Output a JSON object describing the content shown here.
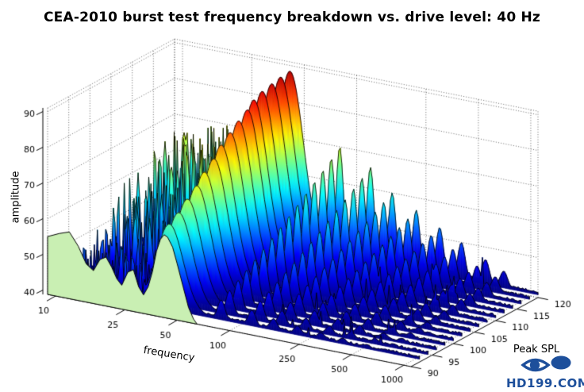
{
  "title": "CEA-2010 burst test frequency breakdown vs. drive level: 40 Hz",
  "watermark": {
    "text": "HD199.COM",
    "color": "#1d4f9b"
  },
  "colors": {
    "background": "#ffffff",
    "front_slice_fill": "#c9efb3",
    "slice_stroke": "#000000",
    "grid": "#555555",
    "axis": "#000000"
  },
  "chart_data": {
    "type": "3d-waterfall",
    "title": "CEA-2010 burst test frequency breakdown vs. drive level: 40 Hz",
    "xlabel": "frequency",
    "x_scale": "log",
    "x_ticks": [
      10,
      25,
      50,
      100,
      250,
      500,
      1000
    ],
    "x_range": [
      9,
      1100
    ],
    "ylabel": "Peak SPL",
    "y_ticks": [
      90,
      95,
      100,
      105,
      110,
      115,
      120
    ],
    "y_range": [
      90,
      120
    ],
    "zlabel": "amplitude",
    "z_ticks": [
      40,
      50,
      60,
      70,
      80,
      90
    ],
    "z_range": [
      38.8,
      91
    ],
    "colormap": "jet",
    "colormap_amp_range": [
      40,
      91
    ],
    "grid": "dotted",
    "drive_hz": 40,
    "fundamental_hz": 40,
    "series": [
      {
        "peak_spl": 90,
        "fundamental_amplitude": 62.0,
        "style": "front-green"
      },
      {
        "peak_spl": 92,
        "fundamental_amplitude": 63.5
      },
      {
        "peak_spl": 94,
        "fundamental_amplitude": 65.5
      },
      {
        "peak_spl": 96,
        "fundamental_amplitude": 68.0
      },
      {
        "peak_spl": 98,
        "fundamental_amplitude": 70.5
      },
      {
        "peak_spl": 100,
        "fundamental_amplitude": 73.0
      },
      {
        "peak_spl": 102,
        "fundamental_amplitude": 75.5
      },
      {
        "peak_spl": 104,
        "fundamental_amplitude": 78.0
      },
      {
        "peak_spl": 106,
        "fundamental_amplitude": 80.2
      },
      {
        "peak_spl": 108,
        "fundamental_amplitude": 82.2
      },
      {
        "peak_spl": 110,
        "fundamental_amplitude": 84.0
      },
      {
        "peak_spl": 112,
        "fundamental_amplitude": 85.4
      },
      {
        "peak_spl": 114,
        "fundamental_amplitude": 86.5
      },
      {
        "peak_spl": 116,
        "fundamental_amplitude": 87.4
      },
      {
        "peak_spl": 118,
        "fundamental_amplitude": 88.0
      },
      {
        "peak_spl": 120,
        "fundamental_amplitude": 88.4
      }
    ],
    "harmonics_hz": [
      80,
      120,
      160,
      220,
      300,
      400,
      550,
      700
    ],
    "harmonics_amplitude_at_max_level": [
      70,
      66,
      60,
      56.5,
      53,
      50,
      46.5,
      44.3
    ],
    "harmonics_amplitude_at_min_level": [
      44,
      43,
      42,
      41.5,
      41,
      40.8,
      40.5,
      40.3
    ],
    "noise": {
      "band_hz": [
        11,
        36
      ],
      "cap_at_min_level": 50,
      "cap_at_max_level": 72
    },
    "floor_amplitude": 40.2,
    "front_slice_profile": [
      [
        9,
        55.0
      ],
      [
        10.5,
        56.5
      ],
      [
        12,
        57.5
      ],
      [
        13.5,
        54.0
      ],
      [
        15,
        49.5
      ],
      [
        16.5,
        48.0
      ],
      [
        18,
        51.5
      ],
      [
        19.5,
        52.5
      ],
      [
        21,
        50.0
      ],
      [
        22.5,
        47.0
      ],
      [
        24,
        45.5
      ],
      [
        26,
        49.5
      ],
      [
        28,
        50.5
      ],
      [
        30,
        46.0
      ],
      [
        32,
        44.0
      ],
      [
        34,
        46.5
      ],
      [
        36,
        51.0
      ],
      [
        38,
        57.0
      ],
      [
        40,
        60.5
      ],
      [
        42,
        62.0
      ],
      [
        44,
        61.5
      ],
      [
        47,
        59.0
      ],
      [
        50,
        54.5
      ],
      [
        54,
        48.5
      ],
      [
        58,
        43.0
      ],
      [
        62,
        40.0
      ],
      [
        65,
        38.8
      ]
    ]
  }
}
